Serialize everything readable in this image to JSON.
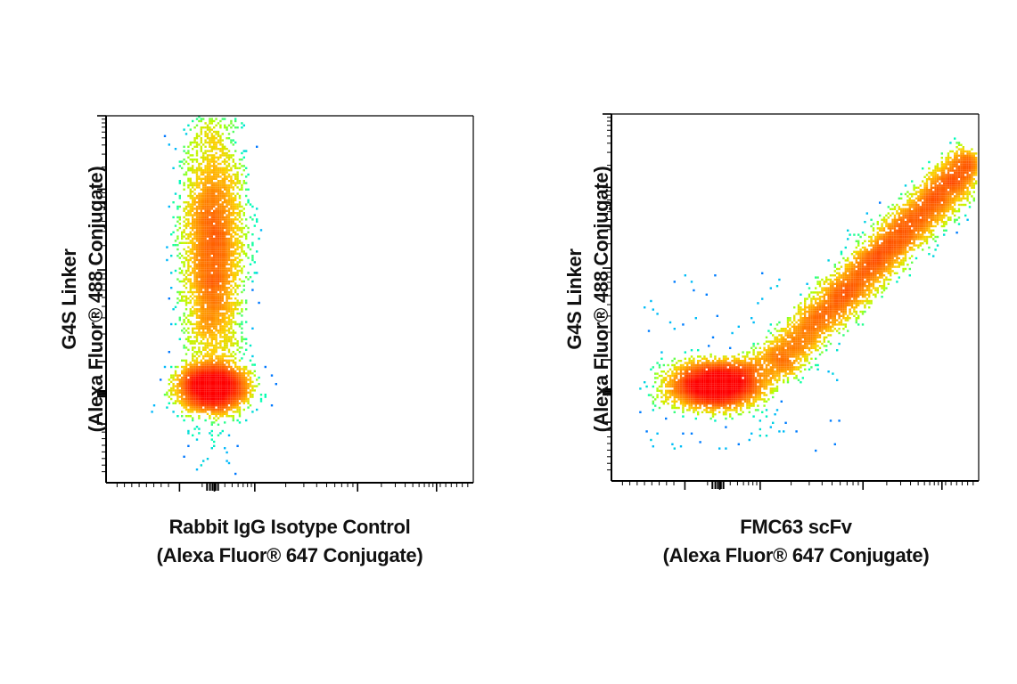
{
  "chart_data": [
    {
      "type": "scatter",
      "subtype": "flow-cytometry-density-plot",
      "xlabel_line1": "Rabbit IgG Isotype Control",
      "xlabel_line2": "(Alexa Fluor® 647 Conjugate)",
      "ylabel_line1": "G4S Linker",
      "ylabel_line2": "(Alexa Fluor® 488 Conjugate)",
      "x_scale": "biexponential",
      "y_scale": "biexponential",
      "tick_labels_shown": false,
      "populations": [
        {
          "name": "",
          "shape": "dense-core",
          "x_center": 0.29,
          "y_center": 0.26,
          "x_spread": 0.045,
          "y_spread": 0.03,
          "count": 4500
        },
        {
          "name": "",
          "shape": "vertical-stream",
          "x_center": 0.29,
          "y_center": 0.63,
          "x_spread": 0.04,
          "y_spread": 0.17,
          "count": 5200
        }
      ],
      "axis_range": {
        "x": [
          0,
          1
        ],
        "y": [
          0,
          1
        ]
      }
    },
    {
      "type": "scatter",
      "subtype": "flow-cytometry-density-plot",
      "xlabel_line1": "FMC63 scFv",
      "xlabel_line2": "(Alexa Fluor® 647 Conjugate)",
      "ylabel_line1": "G4S Linker",
      "ylabel_line2": "(Alexa Fluor® 488 Conjugate)",
      "x_scale": "biexponential",
      "y_scale": "biexponential",
      "tick_labels_shown": false,
      "populations": [
        {
          "name": "",
          "shape": "dense-core",
          "x_center": 0.28,
          "y_center": 0.26,
          "x_spread": 0.06,
          "y_spread": 0.03,
          "count": 4200
        },
        {
          "name": "",
          "shape": "diagonal-stream",
          "x_start": 0.45,
          "y_start": 0.32,
          "x_end": 0.99,
          "y_end": 0.88,
          "width": 0.03,
          "count": 5800
        }
      ],
      "axis_range": {
        "x": [
          0,
          1
        ],
        "y": [
          0,
          1
        ]
      }
    }
  ],
  "colors": {
    "axis": "#000000",
    "density_scale": [
      "#0000ff",
      "#00b4ff",
      "#00ffb4",
      "#b4ff00",
      "#ffcc00",
      "#ff6600",
      "#ff0000"
    ]
  }
}
